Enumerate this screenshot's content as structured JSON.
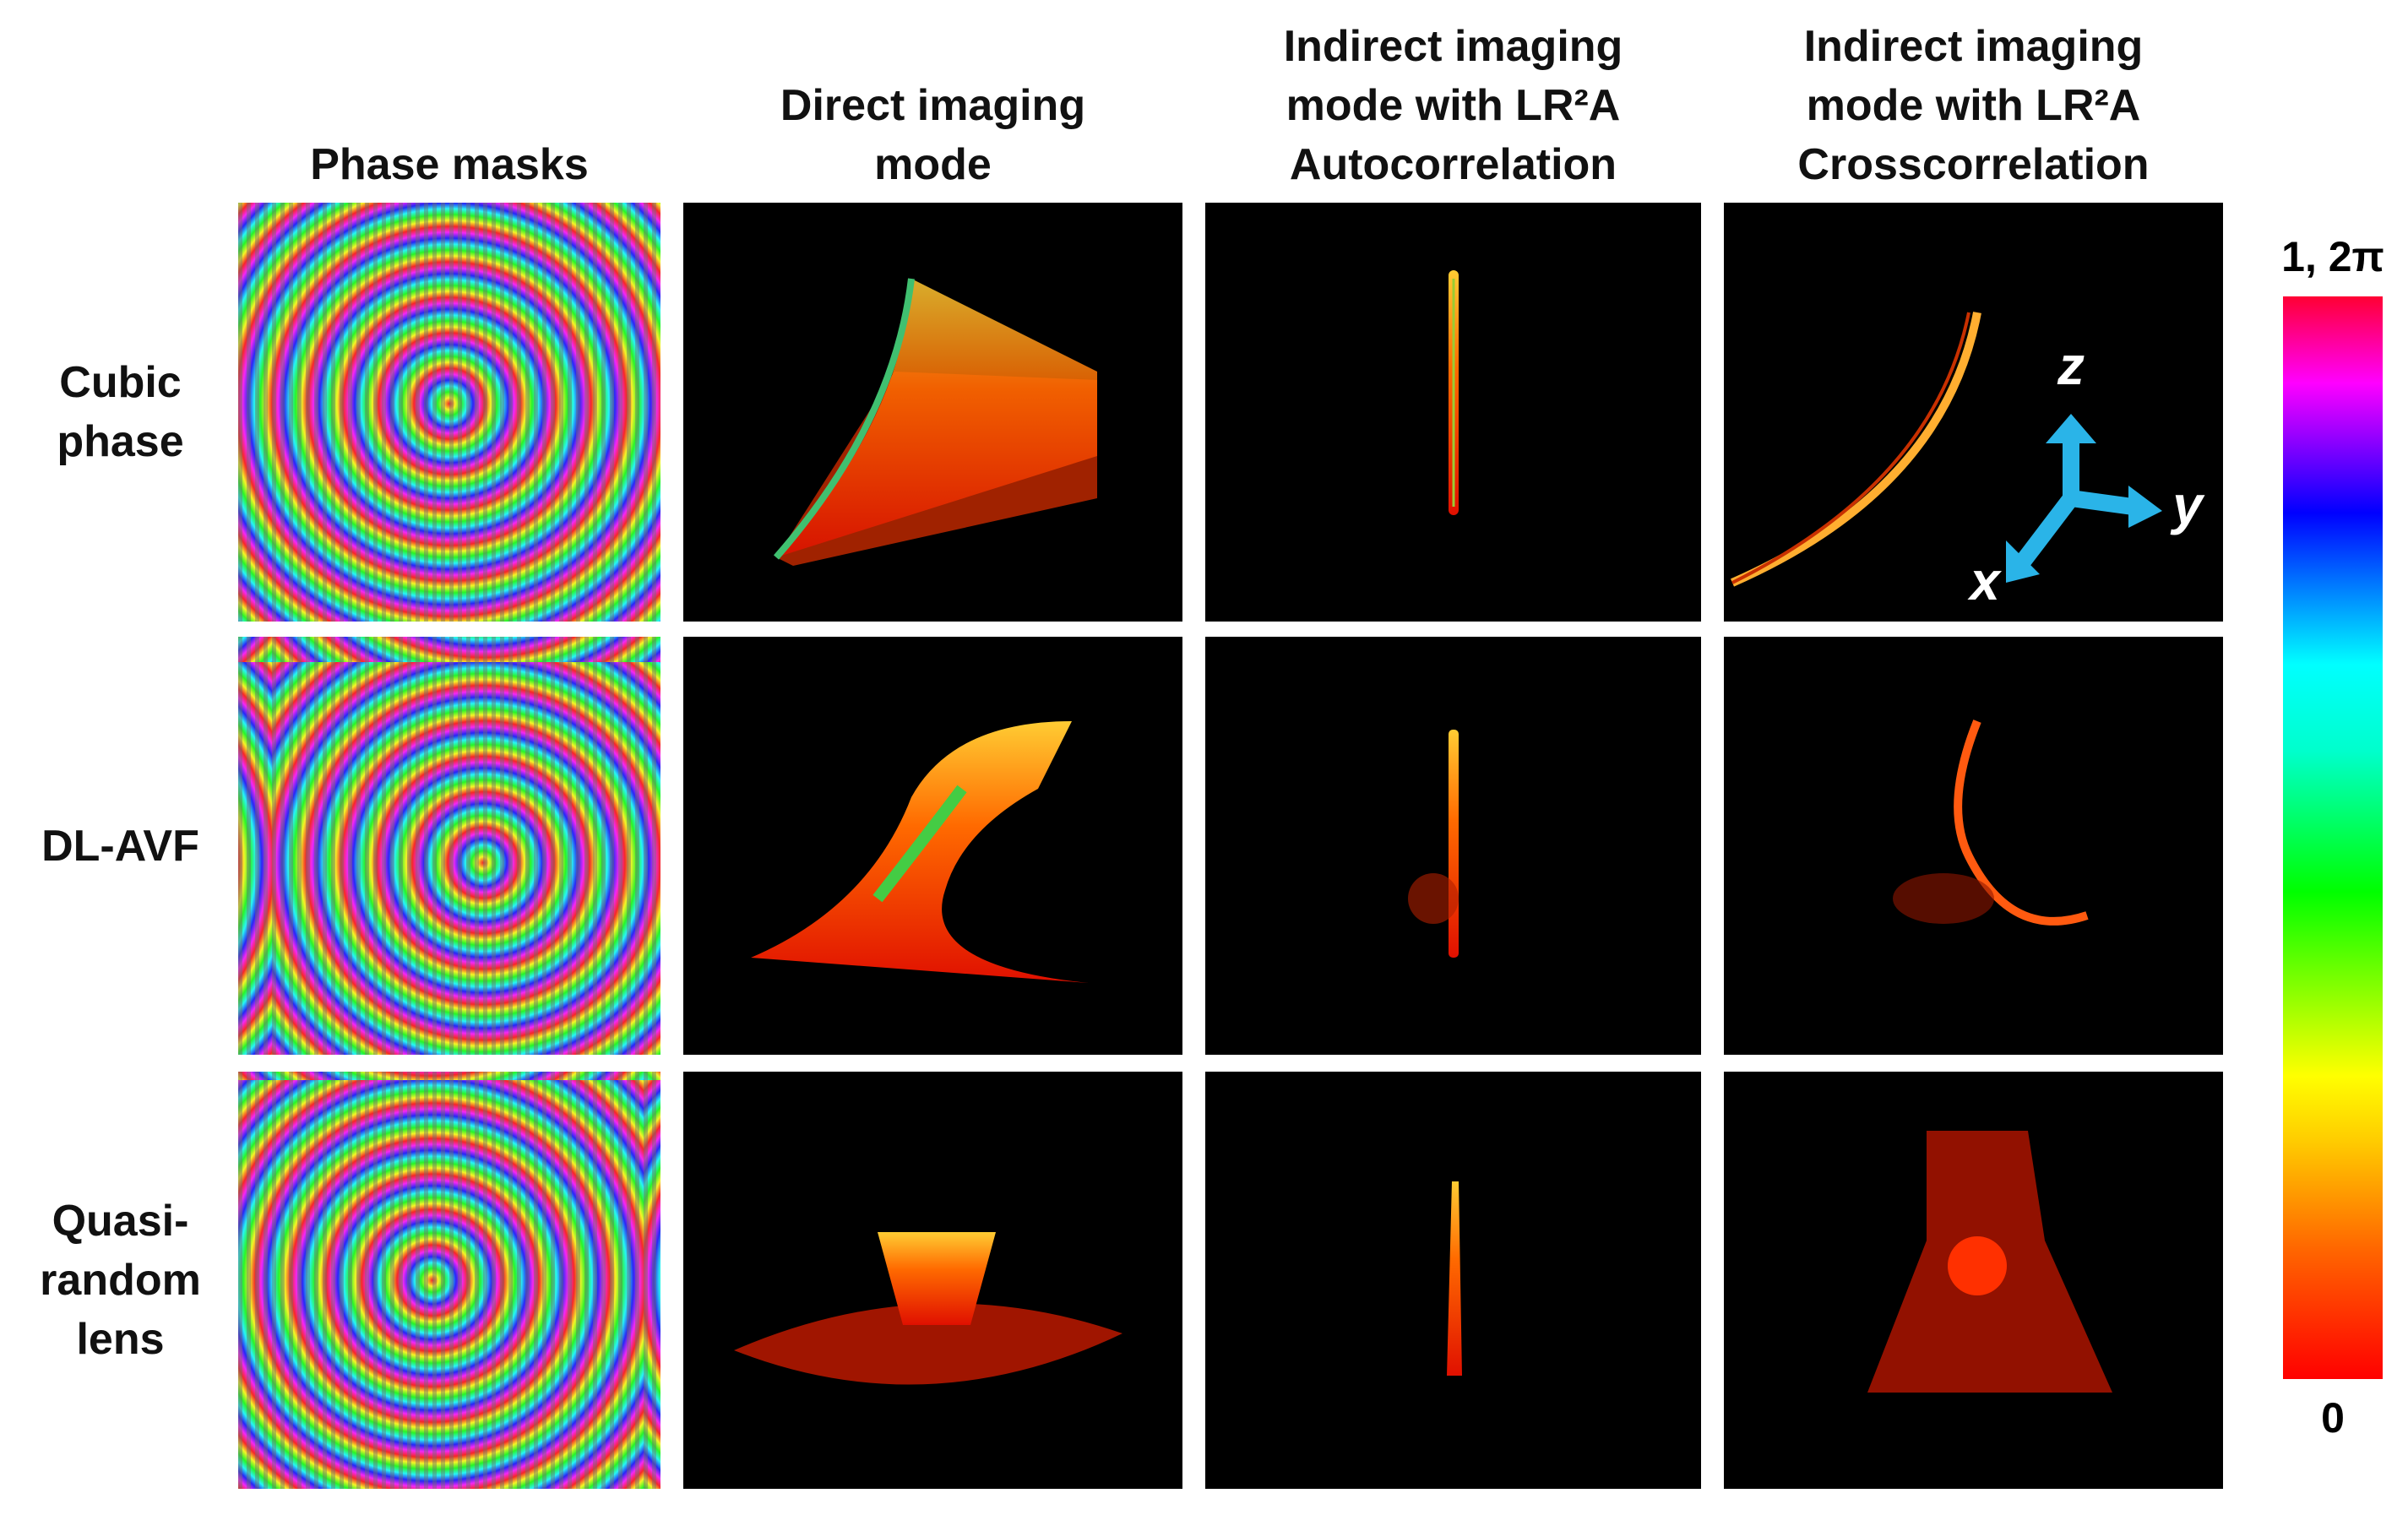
{
  "columns": [
    {
      "lines": [
        "Phase masks"
      ]
    },
    {
      "lines": [
        "Direct imaging",
        "mode"
      ]
    },
    {
      "lines": [
        "Indirect imaging",
        "mode with LR²A",
        "Autocorrelation"
      ]
    },
    {
      "lines": [
        "Indirect imaging",
        "mode with LR²A",
        "Crosscorrelation"
      ]
    }
  ],
  "rows": [
    {
      "lines": [
        "Cubic",
        "phase"
      ]
    },
    {
      "lines": [
        "DL-AVF"
      ]
    },
    {
      "lines": [
        "Quasi-",
        "random",
        "lens"
      ]
    }
  ],
  "colorbar": {
    "max_label": "1, 2π",
    "min_label": "0"
  },
  "axes": [
    "z",
    "y",
    "x"
  ]
}
